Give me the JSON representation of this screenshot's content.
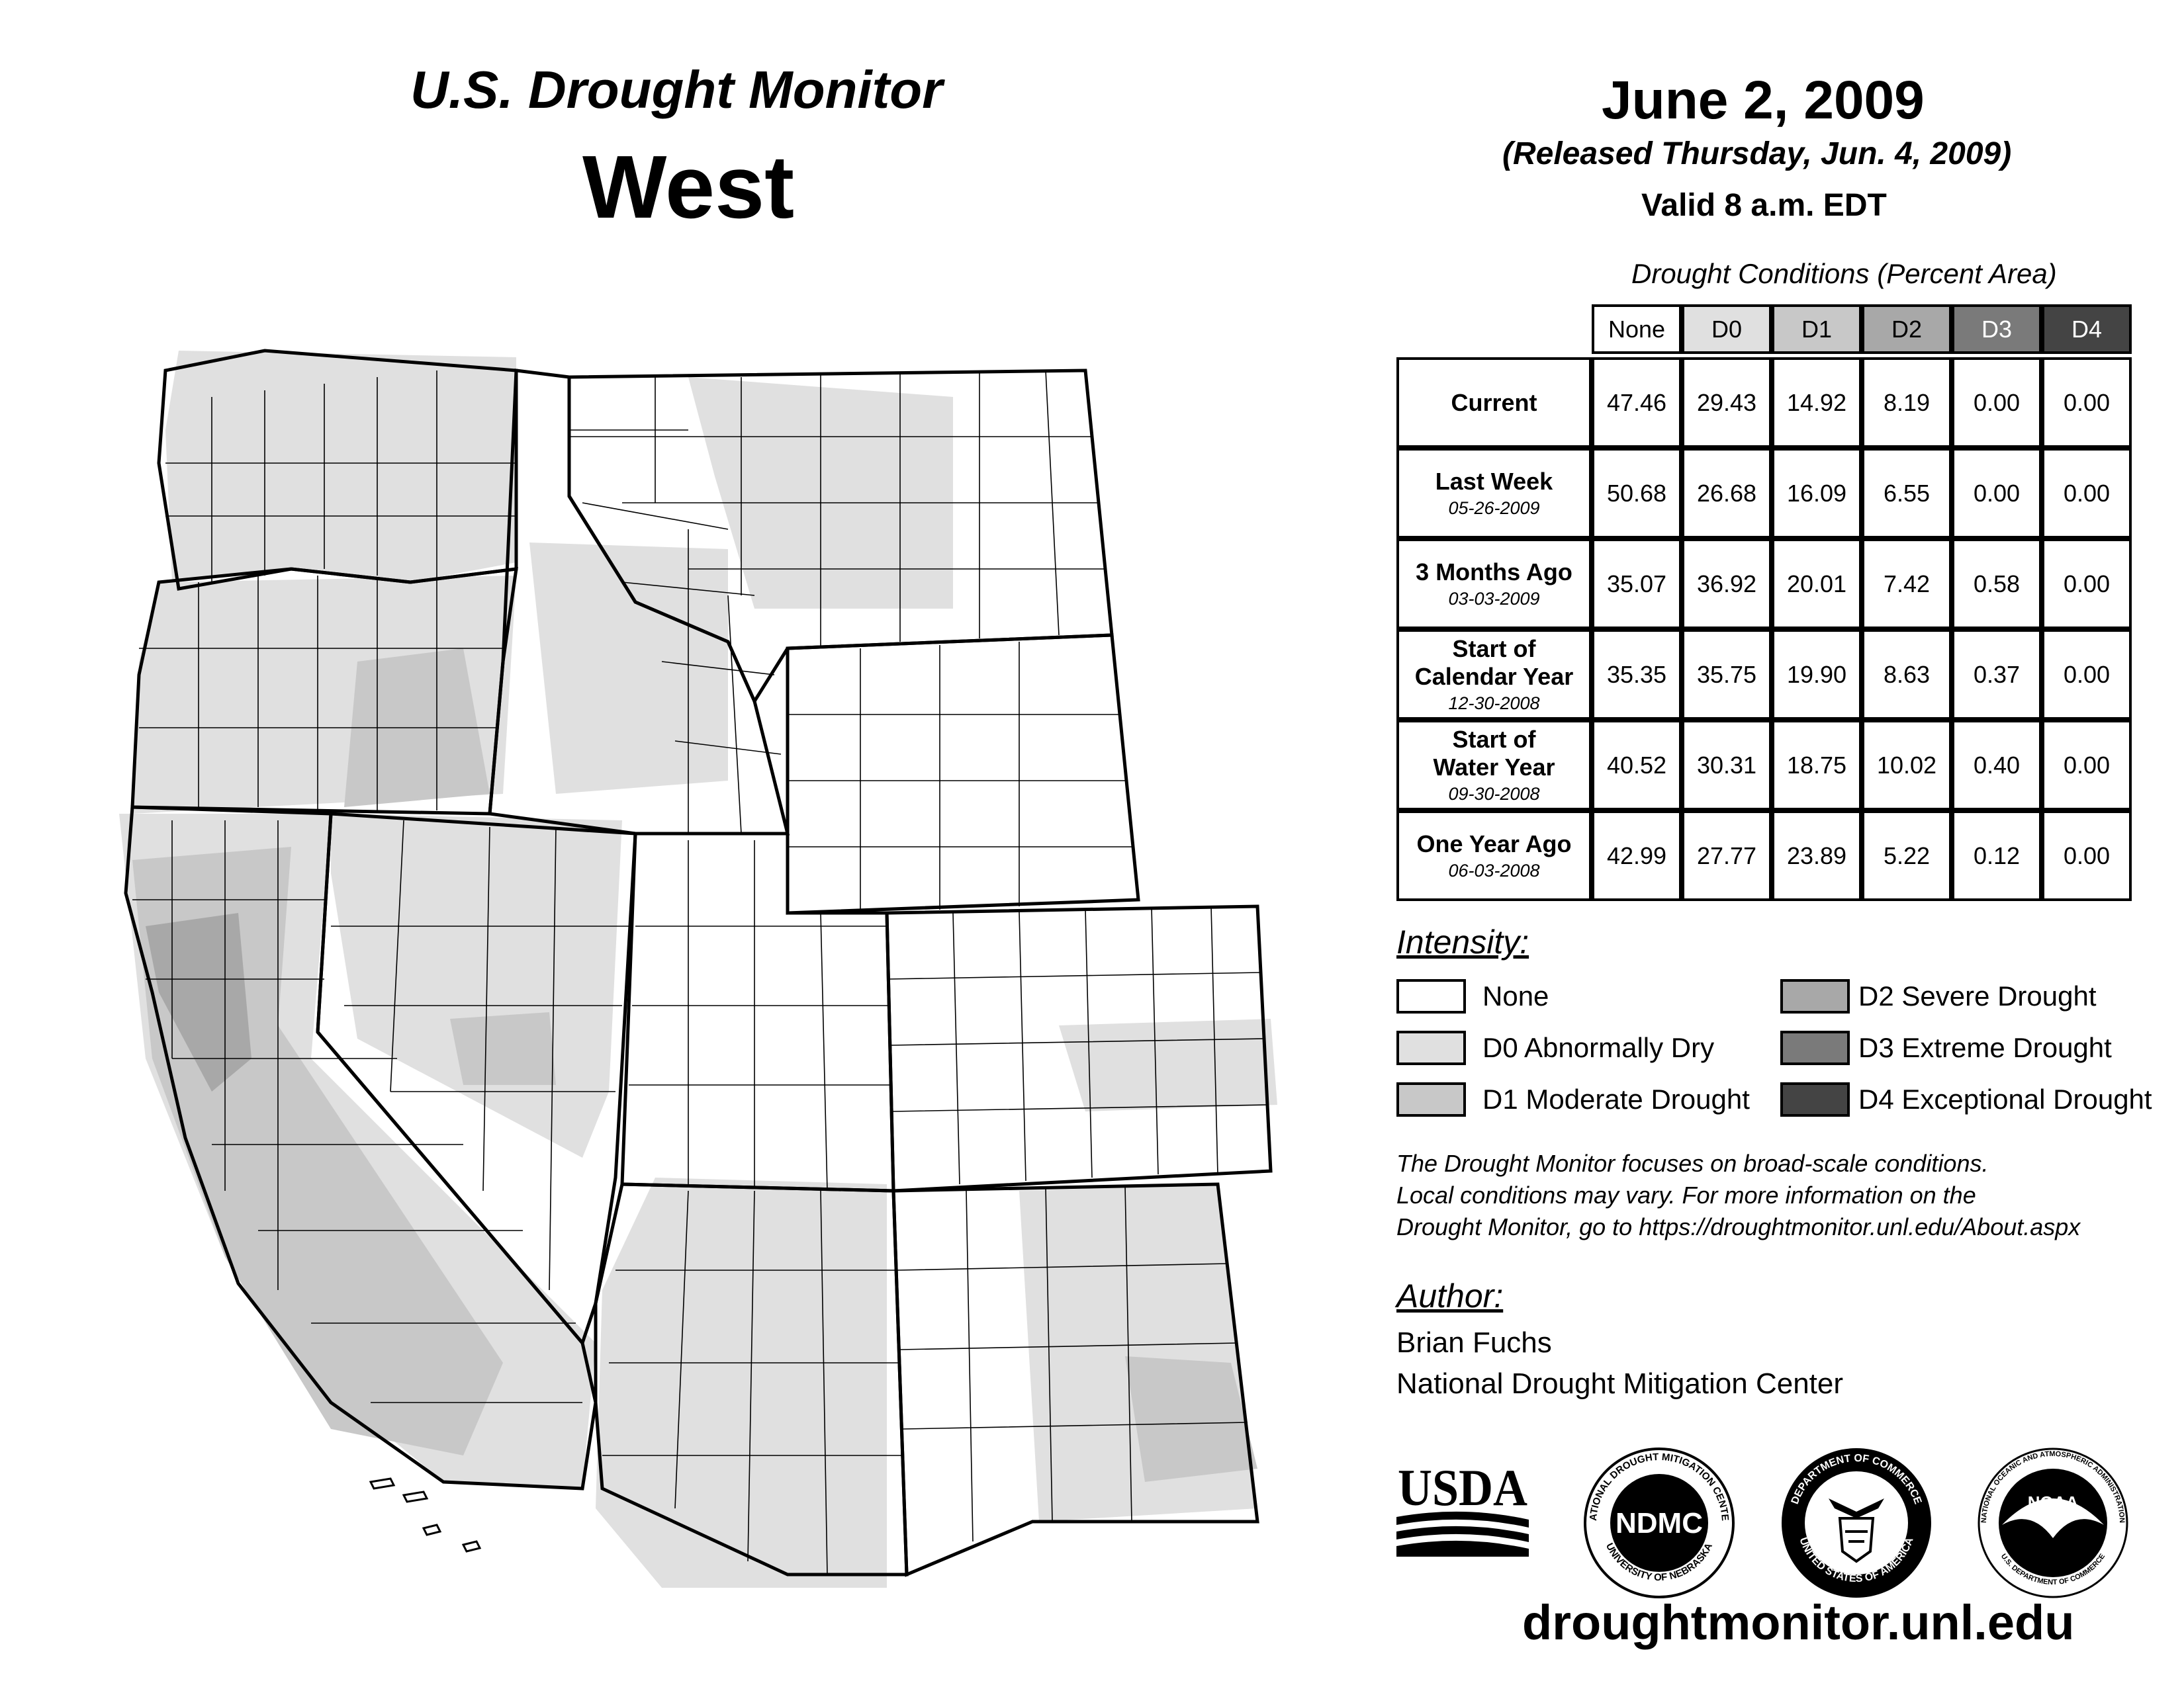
{
  "header": {
    "title": "U.S. Drought Monitor",
    "region": "West",
    "date": "June 2, 2009",
    "released": "(Released Thursday, Jun. 4, 2009)",
    "valid": "Valid 8 a.m. EDT"
  },
  "table": {
    "caption": "Drought Conditions (Percent Area)",
    "columns": [
      "None",
      "D0",
      "D1",
      "D2",
      "D3",
      "D4"
    ],
    "rows": [
      {
        "label": "Current",
        "label2": "",
        "sub": "",
        "values": [
          "47.46",
          "29.43",
          "14.92",
          "8.19",
          "0.00",
          "0.00"
        ]
      },
      {
        "label": "Last Week",
        "label2": "",
        "sub": "05-26-2009",
        "values": [
          "50.68",
          "26.68",
          "16.09",
          "6.55",
          "0.00",
          "0.00"
        ]
      },
      {
        "label": "3 Months Ago",
        "label2": "",
        "sub": "03-03-2009",
        "values": [
          "35.07",
          "36.92",
          "20.01",
          "7.42",
          "0.58",
          "0.00"
        ]
      },
      {
        "label": "Start of",
        "label2": "Calendar Year",
        "sub": "12-30-2008",
        "values": [
          "35.35",
          "35.75",
          "19.90",
          "8.63",
          "0.37",
          "0.00"
        ]
      },
      {
        "label": "Start of",
        "label2": "Water Year",
        "sub": "09-30-2008",
        "values": [
          "40.52",
          "30.31",
          "18.75",
          "10.02",
          "0.40",
          "0.00"
        ]
      },
      {
        "label": "One Year Ago",
        "label2": "",
        "sub": "06-03-2008",
        "values": [
          "42.99",
          "27.77",
          "23.89",
          "5.22",
          "0.12",
          "0.00"
        ]
      }
    ]
  },
  "legend": {
    "title": "Intensity:",
    "items": [
      {
        "label": "None",
        "color": "#ffffff"
      },
      {
        "label": "D0 Abnormally Dry",
        "color": "#e0e0e0"
      },
      {
        "label": "D1 Moderate Drought",
        "color": "#c8c8c8"
      },
      {
        "label": "D2 Severe Drought",
        "color": "#a8a8a8"
      },
      {
        "label": "D3 Extreme Drought",
        "color": "#7a7a7a"
      },
      {
        "label": "D4 Exceptional Drought",
        "color": "#444444"
      }
    ]
  },
  "note": {
    "line1": "The Drought Monitor focuses on broad-scale conditions.",
    "line2": "Local conditions may vary. For more information on the",
    "line3": "Drought Monitor, go to https://droughtmonitor.unl.edu/About.aspx"
  },
  "author": {
    "title": "Author:",
    "name": "Brian Fuchs",
    "org": "National Drought Mitigation Center"
  },
  "logos": {
    "usda": "USDA",
    "ndmc": "NDMC",
    "ndmc_ring_top": "NATIONAL DROUGHT MITIGATION CENTER",
    "ndmc_ring_bottom": "UNIVERSITY OF NEBRASKA",
    "doc_ring_top": "DEPARTMENT OF COMMERCE",
    "doc_ring_bottom": "UNITED STATES OF AMERICA",
    "noaa": "NOAA",
    "noaa_ring_top": "NATIONAL OCEANIC AND ATMOSPHERIC ADMINISTRATION",
    "noaa_ring_bottom": "U.S. DEPARTMENT OF COMMERCE"
  },
  "url": "droughtmonitor.unl.edu",
  "map": {
    "states": [
      "WA",
      "OR",
      "CA",
      "NV",
      "ID",
      "MT",
      "WY",
      "UT",
      "CO",
      "AZ",
      "NM"
    ]
  }
}
